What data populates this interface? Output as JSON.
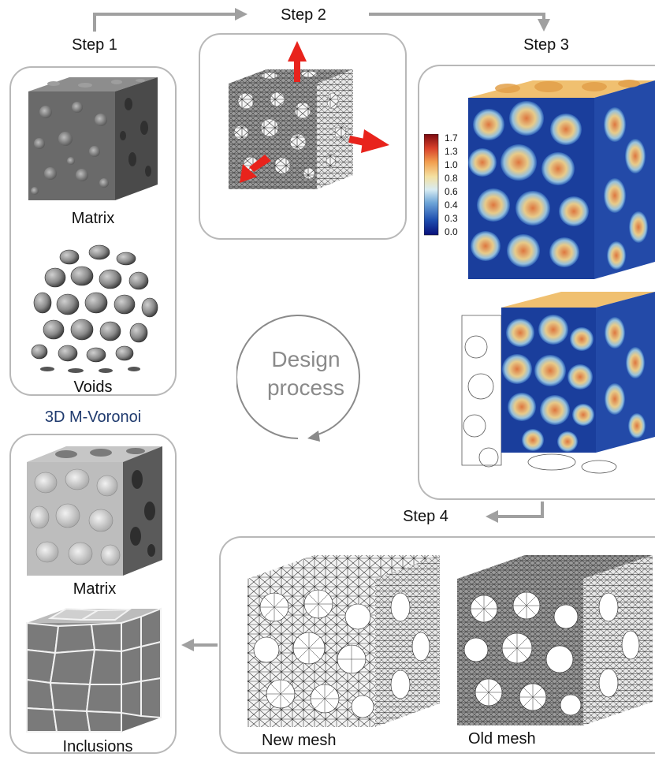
{
  "steps": {
    "step1": "Step 1",
    "step2": "Step 2",
    "step3": "Step 3",
    "step4": "Step 4"
  },
  "step1_panel": {
    "matrix_label": "Matrix",
    "voids_label": "Voids"
  },
  "result_title": "3D M-Voronoi",
  "result_panel": {
    "matrix_label": "Matrix",
    "inclusions_label": "Inclusions"
  },
  "cycle": {
    "line1": "Design",
    "line2": "process"
  },
  "colorbar": {
    "ticks": [
      "1.7",
      "1.3",
      "1.0",
      "0.8",
      "0.6",
      "0.4",
      "0.3",
      "0.0"
    ]
  },
  "step4_panel": {
    "new_mesh_label": "New mesh",
    "old_mesh_label": "Old mesh"
  },
  "colors": {
    "arrow_gray": "#a0a0a0",
    "load_arrow_red": "#e8231c",
    "title_blue": "#1f3a6e"
  }
}
